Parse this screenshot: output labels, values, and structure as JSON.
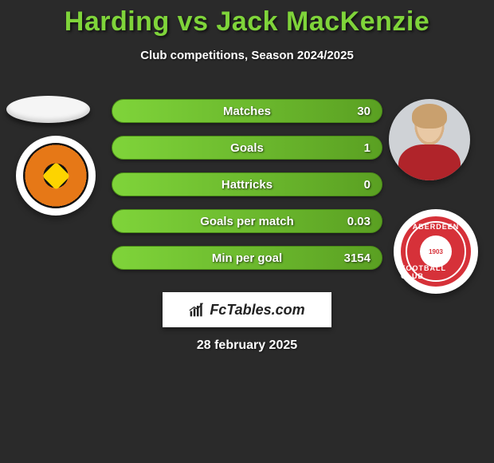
{
  "title_color": "#7fd43a",
  "title": "Harding vs Jack MacKenzie",
  "subtitle": "Club competitions, Season 2024/2025",
  "date": "28 february 2025",
  "attribution": "FcTables.com",
  "left_club_badge": {
    "outer_bg": "#ffffff",
    "ring_color": "#111111",
    "mid_color": "#e67817",
    "accent_color": "#fdd400"
  },
  "right_club_badge": {
    "bg": "#d63139",
    "text_top": "ABERDEEN",
    "text_bottom": "FOOTBALL CLUB",
    "core_text": "1903"
  },
  "stats_bar": {
    "bg_left": "#7fd43a",
    "bg_right": "#5aa022",
    "border_color": "#4a8a18"
  },
  "stats": [
    {
      "label": "Matches",
      "value_right": "30"
    },
    {
      "label": "Goals",
      "value_right": "1"
    },
    {
      "label": "Hattricks",
      "value_right": "0"
    },
    {
      "label": "Goals per match",
      "value_right": "0.03"
    },
    {
      "label": "Min per goal",
      "value_right": "3154"
    }
  ]
}
